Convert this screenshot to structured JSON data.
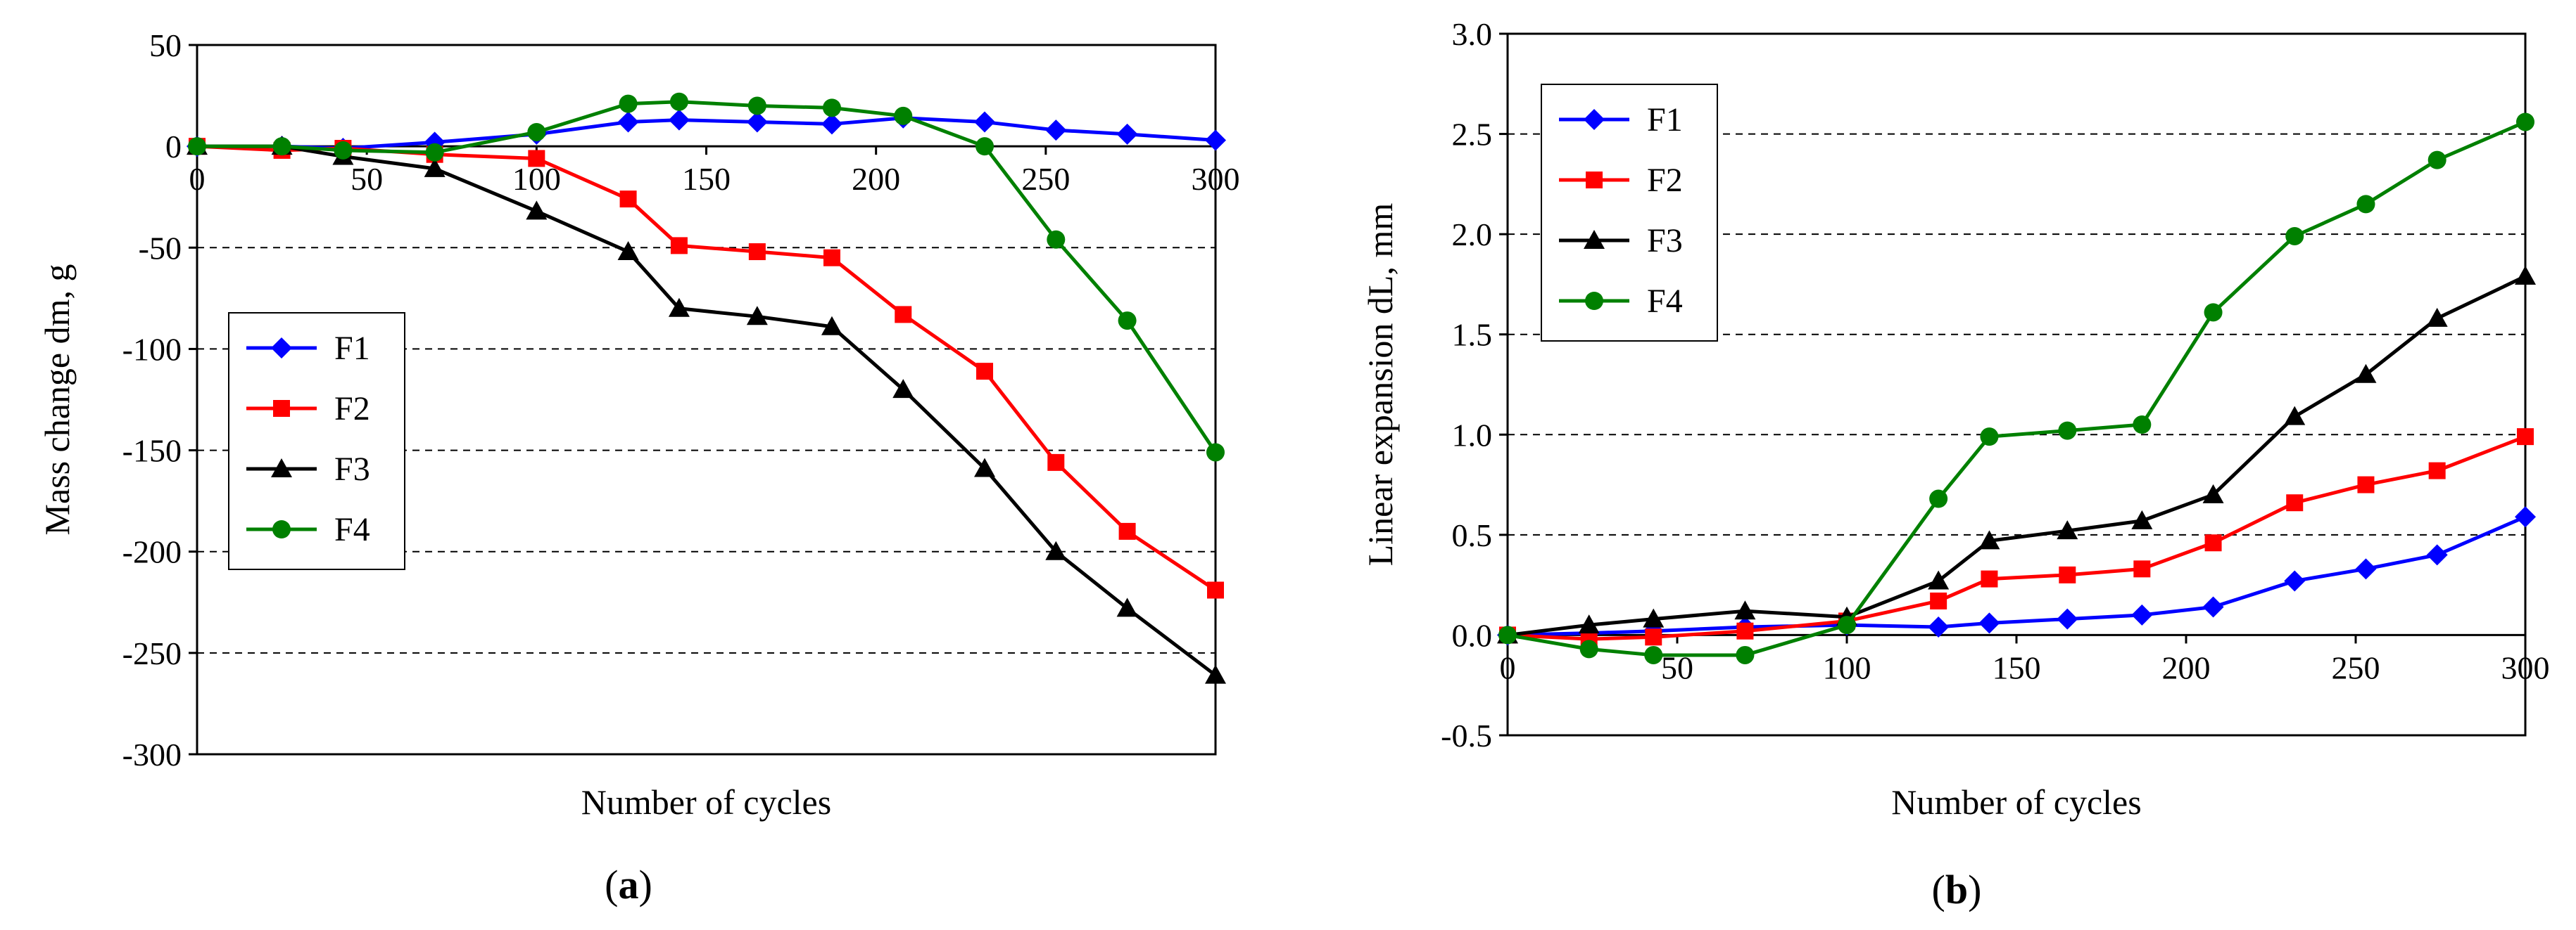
{
  "chart_data": [
    {
      "type": "line",
      "panel_label": "(a)",
      "panel_letter": "a",
      "xlabel": "Number of cycles",
      "ylabel": "Mass change dm, g",
      "xlim": [
        0,
        300
      ],
      "ylim": [
        -300,
        50
      ],
      "xticks": [
        0,
        50,
        100,
        150,
        200,
        250,
        300
      ],
      "yticks": [
        -300,
        -250,
        -200,
        -150,
        -100,
        -50,
        0,
        50
      ],
      "grid": "horizontal-dashed",
      "legend_position": "center-left",
      "series": [
        {
          "name": "F1",
          "color": "#0000ff",
          "marker": "diamond",
          "x": [
            0,
            25,
            43,
            70,
            100,
            127,
            142,
            165,
            187,
            208,
            232,
            253,
            274,
            300
          ],
          "y": [
            0,
            0,
            -1,
            2,
            6,
            12,
            13,
            12,
            11,
            14,
            12,
            8,
            6,
            3
          ]
        },
        {
          "name": "F2",
          "color": "#ff0000",
          "marker": "square",
          "x": [
            0,
            25,
            43,
            70,
            100,
            127,
            142,
            165,
            187,
            208,
            232,
            253,
            274,
            300
          ],
          "y": [
            0,
            -2,
            -1,
            -4,
            -6,
            -26,
            -49,
            -52,
            -55,
            -83,
            -111,
            -156,
            -190,
            -219
          ]
        },
        {
          "name": "F3",
          "color": "#000000",
          "marker": "triangle",
          "x": [
            0,
            25,
            43,
            70,
            100,
            127,
            142,
            165,
            187,
            208,
            232,
            253,
            274,
            300
          ],
          "y": [
            0,
            0,
            -5,
            -11,
            -32,
            -52,
            -80,
            -84,
            -89,
            -120,
            -159,
            -200,
            -228,
            -261
          ]
        },
        {
          "name": "F4",
          "color": "#008000",
          "marker": "circle",
          "x": [
            0,
            25,
            43,
            70,
            100,
            127,
            142,
            165,
            187,
            208,
            232,
            253,
            274,
            300
          ],
          "y": [
            0,
            0,
            -2,
            -3,
            7,
            21,
            22,
            20,
            19,
            15,
            0,
            -46,
            -86,
            -151
          ]
        }
      ]
    },
    {
      "type": "line",
      "panel_label": "(b)",
      "panel_letter": "b",
      "xlabel": "Number of cycles",
      "ylabel": "Linear expansion dL, mm",
      "xlim": [
        0,
        300
      ],
      "ylim": [
        -0.5,
        3.0
      ],
      "xticks": [
        0,
        50,
        100,
        150,
        200,
        250,
        300
      ],
      "yticks": [
        -0.5,
        0.0,
        0.5,
        1.0,
        1.5,
        2.0,
        2.5,
        3.0
      ],
      "ytick_labels": [
        "-0.5",
        "0.0",
        "0.5",
        "1.0",
        "1.5",
        "2.0",
        "2.5",
        "3.0"
      ],
      "grid": "horizontal-dashed",
      "legend_position": "top-left",
      "series": [
        {
          "name": "F1",
          "color": "#0000ff",
          "marker": "diamond",
          "x": [
            0,
            24,
            43,
            70,
            100,
            127,
            142,
            165,
            187,
            208,
            232,
            253,
            274,
            300
          ],
          "y": [
            0,
            0.01,
            0.02,
            0.04,
            0.05,
            0.04,
            0.06,
            0.08,
            0.1,
            0.14,
            0.27,
            0.33,
            0.4,
            0.59
          ]
        },
        {
          "name": "F2",
          "color": "#ff0000",
          "marker": "square",
          "x": [
            0,
            24,
            43,
            70,
            100,
            127,
            142,
            165,
            187,
            208,
            232,
            253,
            274,
            300
          ],
          "y": [
            0,
            -0.02,
            -0.01,
            0.02,
            0.07,
            0.17,
            0.28,
            0.3,
            0.33,
            0.46,
            0.66,
            0.75,
            0.82,
            0.99
          ]
        },
        {
          "name": "F3",
          "color": "#000000",
          "marker": "triangle",
          "x": [
            0,
            24,
            43,
            70,
            100,
            127,
            142,
            165,
            187,
            208,
            232,
            253,
            274,
            300
          ],
          "y": [
            0,
            0.05,
            0.08,
            0.12,
            0.09,
            0.27,
            0.47,
            0.52,
            0.57,
            0.7,
            1.09,
            1.3,
            1.58,
            1.79
          ]
        },
        {
          "name": "F4",
          "color": "#008000",
          "marker": "circle",
          "x": [
            0,
            24,
            43,
            70,
            100,
            127,
            142,
            165,
            187,
            208,
            232,
            253,
            274,
            300
          ],
          "y": [
            0,
            -0.07,
            -0.1,
            -0.1,
            0.05,
            0.68,
            0.99,
            1.02,
            1.05,
            1.61,
            1.99,
            2.15,
            2.37,
            2.56
          ]
        }
      ]
    }
  ]
}
